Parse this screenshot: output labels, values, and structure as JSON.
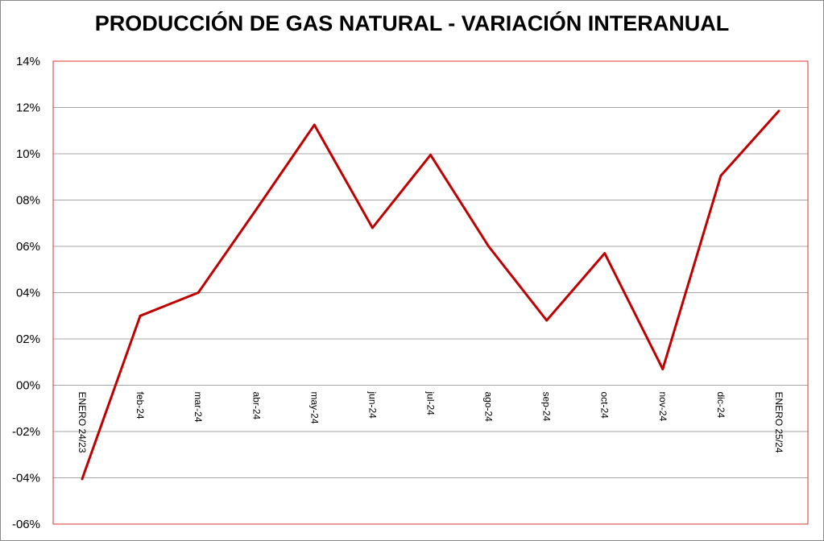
{
  "chart_data": {
    "type": "line",
    "title": "PRODUCCIÓN DE GAS NATURAL - VARIACIÓN INTERANUAL",
    "xlabel": "",
    "ylabel": "",
    "categories": [
      "ENERO 24/23",
      "feb-24",
      "mar-24",
      "abr-24",
      "may-24",
      "jun-24",
      "jul-24",
      "ago-24",
      "sep-24",
      "oct-24",
      "nov-24",
      "dic-24",
      "ENERO 25/24"
    ],
    "series": [
      {
        "values": [
          -4.05,
          3.0,
          4.0,
          7.6,
          11.25,
          6.8,
          9.95,
          6.0,
          2.8,
          5.7,
          0.7,
          9.05,
          11.85
        ]
      }
    ],
    "ylim": [
      -6,
      14
    ],
    "y_ticks": [
      14,
      12,
      10,
      8,
      6,
      4,
      2,
      0,
      -2,
      -4,
      -6
    ],
    "y_tick_labels": [
      "14%",
      "12%",
      "10%",
      "08%",
      "06%",
      "04%",
      "02%",
      "00%",
      "-02%",
      "-04%",
      "-06%"
    ],
    "grid": true,
    "legend": "none",
    "line_color": "#c00000",
    "plot_border_color": "#d9312b",
    "grid_color": "#a6a6a6"
  }
}
